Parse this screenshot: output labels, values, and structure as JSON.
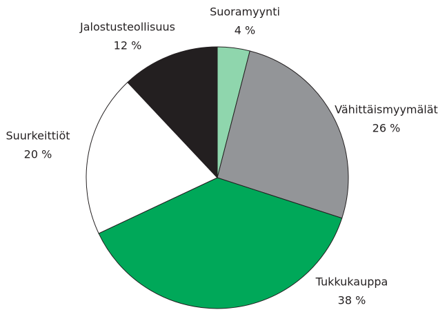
{
  "chart_data": {
    "type": "pie",
    "categories": [
      "Suoramyynti",
      "Vähittäismyymälät",
      "Tukkukauppa",
      "Suurkeittiöt",
      "Jalostusteollisuus"
    ],
    "values": [
      4,
      26,
      38,
      20,
      12
    ],
    "value_labels": [
      "4 %",
      "26 %",
      "38 %",
      "20 %",
      "12 %"
    ],
    "colors": [
      "#8fd6ad",
      "#939598",
      "#00a859",
      "#ffffff",
      "#231f20"
    ]
  }
}
